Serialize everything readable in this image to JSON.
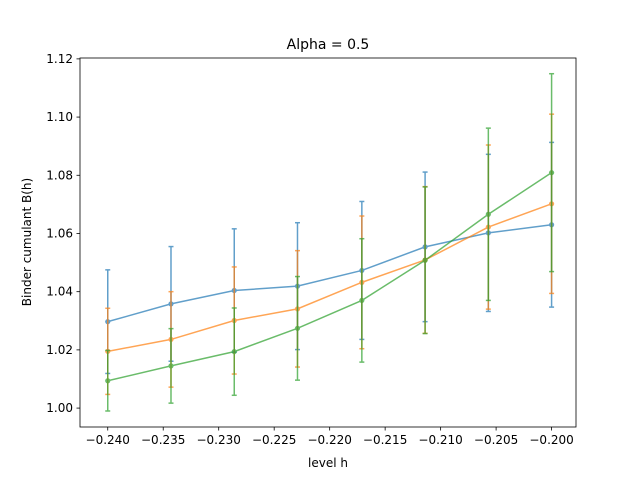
{
  "chart_data": {
    "type": "line",
    "title": "Alpha = 0.5",
    "xlabel": "level h",
    "ylabel": "Binder cumulant B(h)",
    "xlim": [
      -0.2425,
      -0.1978
    ],
    "ylim": [
      0.9935,
      1.1203
    ],
    "xticks": [
      -0.24,
      -0.235,
      -0.23,
      -0.225,
      -0.22,
      -0.215,
      -0.21,
      -0.205,
      -0.2
    ],
    "xtick_labels": [
      "−0.240",
      "−0.235",
      "−0.230",
      "−0.225",
      "−0.220",
      "−0.215",
      "−0.210",
      "−0.205",
      "−0.200"
    ],
    "yticks": [
      1.0,
      1.02,
      1.04,
      1.06,
      1.08,
      1.1,
      1.12
    ],
    "ytick_labels": [
      "1.00",
      "1.02",
      "1.04",
      "1.06",
      "1.08",
      "1.10",
      "1.12"
    ],
    "grid": false,
    "legend": false,
    "x": [
      -0.24,
      -0.2343,
      -0.2286,
      -0.2229,
      -0.2171,
      -0.2114,
      -0.2057,
      -0.2
    ],
    "series": [
      {
        "color": "#1f77b4",
        "values": [
          1.0297,
          1.0358,
          1.0404,
          1.0419,
          1.0473,
          1.0554,
          1.0602,
          1.063
        ],
        "errors": [
          0.0178,
          0.0197,
          0.0212,
          0.0218,
          0.0237,
          0.0257,
          0.027,
          0.0283
        ]
      },
      {
        "color": "#ff7f0e",
        "values": [
          1.0195,
          1.0236,
          1.0301,
          1.0341,
          1.0432,
          1.0509,
          1.0622,
          1.0702
        ],
        "errors": [
          0.0148,
          0.0164,
          0.0184,
          0.02,
          0.0228,
          0.0252,
          0.0282,
          0.0308
        ]
      },
      {
        "color": "#2ca02c",
        "values": [
          1.0094,
          1.0145,
          1.0194,
          1.0274,
          1.037,
          1.0508,
          1.0666,
          1.0809
        ],
        "errors": [
          0.0104,
          0.0128,
          0.015,
          0.0178,
          0.0212,
          0.0252,
          0.0296,
          0.034
        ]
      }
    ]
  }
}
